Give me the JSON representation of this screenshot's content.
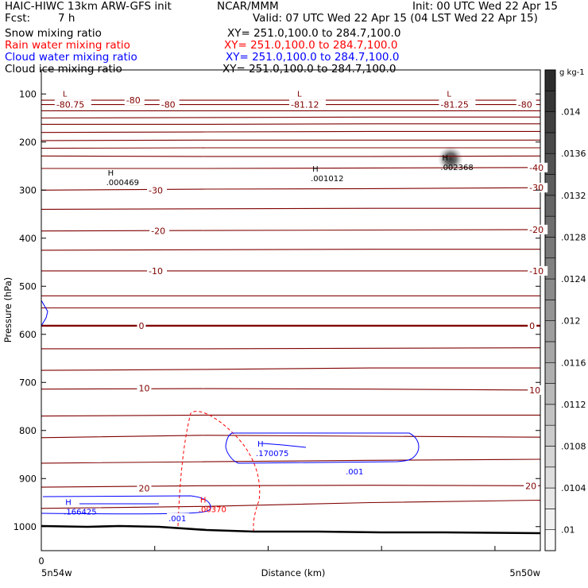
{
  "header": {
    "title_left": "HAIC-HIWC 13km ARW-GFS init",
    "org": "NCAR/MMM",
    "init": "Init: 00 UTC Wed 22 Apr 15",
    "fcst_label": "Fcst:",
    "fcst_value": "7 h",
    "valid": "Valid: 07 UTC Wed 22 Apr 15 (04 LST Wed 22 Apr 15)",
    "fields": [
      {
        "name": "Snow mixing ratio",
        "xy": "XY= 251.0,100.0 to 284.7,100.0",
        "color": "#000000"
      },
      {
        "name": "Rain water mixing ratio",
        "xy": "XY= 251.0,100.0 to 284.7,100.0",
        "color": "#ff0000"
      },
      {
        "name": "Cloud water mixing ratio",
        "xy": "XY= 251.0,100.0 to 284.7,100.0",
        "color": "#0000ff"
      },
      {
        "name": "Cloud ice mixing ratio",
        "xy": "XY= 251.0,100.0 to 284.7,100.0",
        "color": "#000000"
      }
    ]
  },
  "chart_data": {
    "type": "heatmap",
    "xlabel": "Distance (km)",
    "ylabel": "Pressure (hPa)",
    "x_tick_labels": [
      "0"
    ],
    "x_end_labels": [
      "5n54w",
      "5n50w"
    ],
    "yticks": [
      100,
      200,
      300,
      400,
      500,
      600,
      700,
      800,
      900,
      1000
    ],
    "ylim": [
      1050,
      50
    ],
    "colorbar": {
      "unit": "g kg-1",
      "ticks": [
        ".01",
        ".0104",
        ".0108",
        ".0112",
        ".0116",
        ".012",
        ".0124",
        ".0128",
        ".0132",
        ".0136",
        ".014"
      ],
      "range": [
        0.0098,
        0.0144
      ]
    },
    "temperature_isotherms": [
      {
        "label": "-80.75",
        "p": 122,
        "kind": "L",
        "x_frac": 0.03
      },
      {
        "label": "-80",
        "p": 113,
        "x_frac": 0.17
      },
      {
        "label": "-80",
        "p": 122,
        "x_frac": 0.24
      },
      {
        "label": "-81.12",
        "p": 122,
        "kind": "L",
        "x_frac": 0.5
      },
      {
        "label": "-81.25",
        "p": 122,
        "kind": "L",
        "x_frac": 0.8
      },
      {
        "label": "-80",
        "p": 122,
        "x_frac": 0.955
      },
      {
        "label": "-40",
        "p": 253,
        "x_frac": 0.978
      },
      {
        "label": "-30",
        "p": 300,
        "x_frac": 0.215
      },
      {
        "label": "-30",
        "p": 295,
        "x_frac": 0.978
      },
      {
        "label": "-20",
        "p": 385,
        "x_frac": 0.22
      },
      {
        "label": "-20",
        "p": 382,
        "x_frac": 0.978
      },
      {
        "label": "-10",
        "p": 468,
        "x_frac": 0.215
      },
      {
        "label": "-10",
        "p": 468,
        "x_frac": 0.978
      },
      {
        "label": "0",
        "p": 582,
        "x_frac": 0.195
      },
      {
        "label": "0",
        "p": 582,
        "x_frac": 0.978
      },
      {
        "label": "10",
        "p": 712,
        "x_frac": 0.195
      },
      {
        "label": "10",
        "p": 716,
        "x_frac": 0.978
      },
      {
        "label": "20",
        "p": 920,
        "x_frac": 0.195
      },
      {
        "label": "20",
        "p": 915,
        "x_frac": 0.97
      }
    ],
    "extrema": [
      {
        "field": "Snow mixing ratio",
        "kind": "H",
        "value": ".000469",
        "x_frac": 0.13,
        "p": 283,
        "color": "#000000"
      },
      {
        "field": "Snow mixing ratio",
        "kind": "H",
        "value": ".001012",
        "x_frac": 0.54,
        "p": 275,
        "color": "#000000"
      },
      {
        "field": "Snow mixing ratio",
        "kind": "H",
        "value": ".002368",
        "x_frac": 0.8,
        "p": 252,
        "color": "#000000"
      },
      {
        "field": "Cloud water mixing ratio",
        "kind": "H",
        "value": ".170075",
        "x_frac": 0.43,
        "p": 847,
        "color": "#0000ff"
      },
      {
        "field": "Cloud water mixing ratio",
        "kind": "H",
        "value": ".166425",
        "x_frac": 0.045,
        "p": 968,
        "color": "#0000ff"
      },
      {
        "field": "Rain water mixing ratio",
        "kind": "H",
        "value": ".00370",
        "x_frac": 0.315,
        "p": 963,
        "color": "#ff0000"
      }
    ],
    "contour_labels": [
      {
        "value": ".001",
        "x_frac": 0.61,
        "p": 885,
        "color": "#0000ff"
      },
      {
        "value": ".001",
        "x_frac": 0.255,
        "p": 982,
        "color": "#0000ff"
      }
    ],
    "cloud_ice_peak": {
      "x_frac": 0.82,
      "p": 235,
      "value": 0.0142
    },
    "colors": {
      "isotherm": "#800000",
      "zero_isotherm": "#800000",
      "terrain": "#000000"
    }
  }
}
